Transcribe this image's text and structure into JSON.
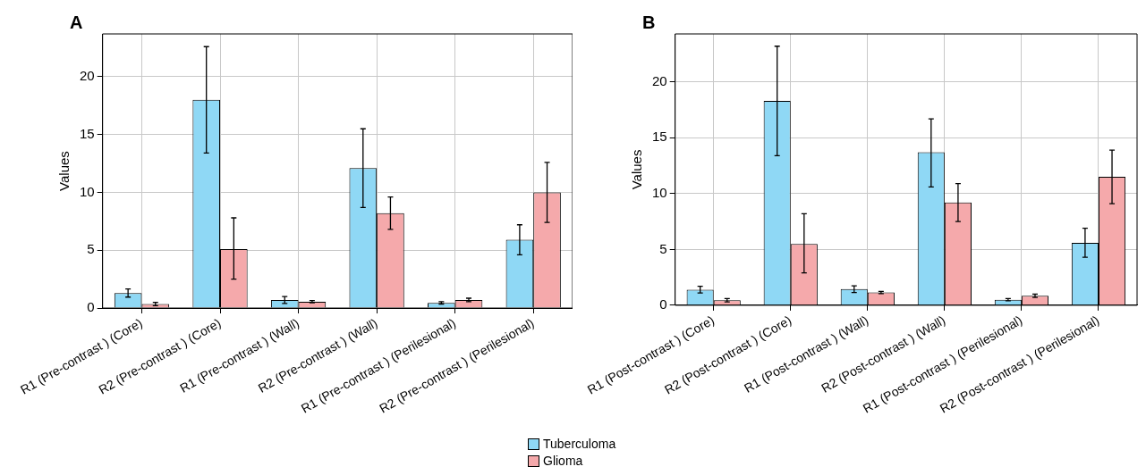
{
  "chart_data": [
    {
      "type": "bar",
      "title": "A",
      "ylabel": "Values",
      "categories": [
        "R1 (Pre-contrast ) (Core)",
        "R2 (Pre-contrast ) (Core)",
        "R1 (Pre-contrast ) (Wall)",
        "R2 (Pre-contrast ) (Wall)",
        "R1 (Pre-contrast ) (Perilesional)",
        "R2 (Pre-contrast ) (Perilesional)"
      ],
      "series": [
        {
          "name": "Tuberculoma",
          "color": "#8fd8f5",
          "values": [
            1.3,
            18.0,
            0.7,
            12.1,
            0.45,
            5.9
          ],
          "errors": [
            0.35,
            [
              13.4,
              22.6
            ],
            0.3,
            [
              8.7,
              15.5
            ],
            0.1,
            [
              4.6,
              7.2
            ]
          ]
        },
        {
          "name": "Glioma",
          "color": "#f5a9ab",
          "values": [
            0.35,
            5.1,
            0.55,
            8.2,
            0.7,
            10.0
          ],
          "errors": [
            0.15,
            [
              2.5,
              7.8
            ],
            0.1,
            [
              6.8,
              9.6
            ],
            0.15,
            [
              7.4,
              12.6
            ]
          ]
        }
      ],
      "ylim": [
        0,
        23.7
      ],
      "yticks": [
        0,
        5,
        10,
        15,
        20
      ],
      "grid": true,
      "legend": "bottom"
    },
    {
      "type": "bar",
      "title": "B",
      "ylabel": "Values",
      "categories": [
        "R1 (Post-contrast ) (Core)",
        "R2 (Post-contrast ) (Core)",
        "R1 (Post-contrast ) (Wall)",
        "R2 (Post-contrast ) (Wall)",
        "R1 (Post-contrast ) (Perilesional)",
        "R2 (Post-contrast ) (Perilesional)"
      ],
      "series": [
        {
          "name": "Tuberculoma",
          "color": "#8fd8f5",
          "values": [
            1.4,
            18.3,
            1.45,
            13.7,
            0.5,
            5.6
          ],
          "errors": [
            0.3,
            [
              13.4,
              23.2
            ],
            0.3,
            [
              10.6,
              16.7
            ],
            0.1,
            [
              4.3,
              6.9
            ]
          ]
        },
        {
          "name": "Glioma",
          "color": "#f5a9ab",
          "values": [
            0.45,
            5.5,
            1.15,
            9.2,
            0.85,
            11.5
          ],
          "errors": [
            0.15,
            [
              2.9,
              8.2
            ],
            0.1,
            [
              7.5,
              10.9
            ],
            0.15,
            [
              9.1,
              13.9
            ]
          ]
        }
      ],
      "ylim": [
        0,
        24.3
      ],
      "yticks": [
        0,
        5,
        10,
        15,
        20
      ],
      "grid": true,
      "legend": "bottom"
    }
  ]
}
